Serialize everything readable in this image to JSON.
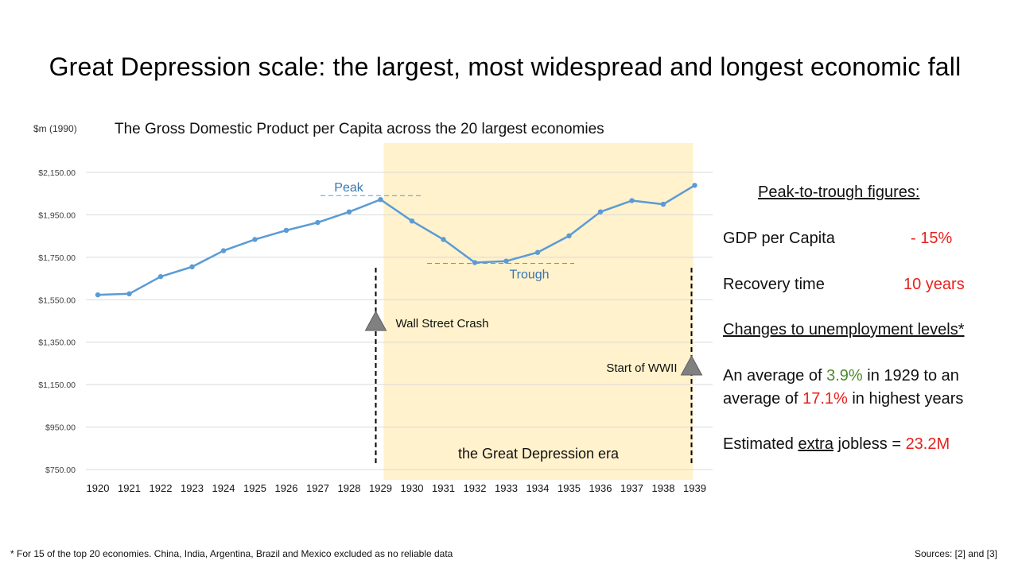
{
  "slide": {
    "title": "Great Depression scale: the largest, most widespread and longest economic fall",
    "footnote": "* For 15 of the top 20 economies. China, India, Argentina, Brazil and Mexico excluded as no reliable data",
    "sources": "Sources: [2] and [3]"
  },
  "chart_data": {
    "type": "line",
    "title": "The Gross Domestic Product per Capita across the 20 largest economies",
    "ylabel": "$m (1990)",
    "xlabel": "",
    "x": [
      "1920",
      "1921",
      "1922",
      "1923",
      "1924",
      "1925",
      "1926",
      "1927",
      "1928",
      "1929",
      "1930",
      "1931",
      "1932",
      "1933",
      "1934",
      "1935",
      "1936",
      "1937",
      "1938",
      "1939"
    ],
    "series": [
      {
        "values": [
          1573,
          1578,
          1659,
          1705,
          1781,
          1834,
          1877,
          1914,
          1964,
          2022,
          1921,
          1834,
          1725,
          1732,
          1773,
          1851,
          1964,
          2017,
          2000,
          2089
        ]
      }
    ],
    "yticks": [
      "$750.00",
      "$950.00",
      "$1,150.00",
      "$1,350.00",
      "$1,550.00",
      "$1,750.00",
      "$1,950.00",
      "$2,150.00"
    ],
    "ytick_values": [
      750,
      950,
      1150,
      1350,
      1550,
      1750,
      1950,
      2150
    ],
    "ylim": [
      750,
      2150
    ],
    "grid": true,
    "line_color": "#5b9bd5",
    "shade_color": "#fff2cc",
    "shaded_region": {
      "from": "1929",
      "to": "1939",
      "label": "the Great Depression era"
    },
    "annotations": {
      "peak": {
        "label": "Peak",
        "value": 2022
      },
      "trough": {
        "label": "Trough",
        "value": 1725
      },
      "events": [
        {
          "label": "Wall Street Crash",
          "x": "1929"
        },
        {
          "label": "Start of WWII",
          "x": "1939"
        }
      ]
    }
  },
  "panel": {
    "heading": "Peak-to-trough figures:",
    "gdp_label": "GDP per Capita",
    "gdp_value": "- 15%",
    "recovery_label": "Recovery time",
    "recovery_value": "10 years",
    "unemp_heading": "Changes to unemployment levels*",
    "unemp_line1_a": "An average of ",
    "unemp_line1_b": "3.9%",
    "unemp_line1_c": " in 1929 to an",
    "unemp_line2_a": "average of ",
    "unemp_line2_b": "17.1%",
    "unemp_line2_c": " in highest years",
    "jobless_a": "Estimated ",
    "jobless_b": "extra",
    "jobless_c": " jobless  = ",
    "jobless_d": "23.2M",
    "colors": {
      "red": "#e8201c",
      "green": "#4f8a2f"
    }
  }
}
